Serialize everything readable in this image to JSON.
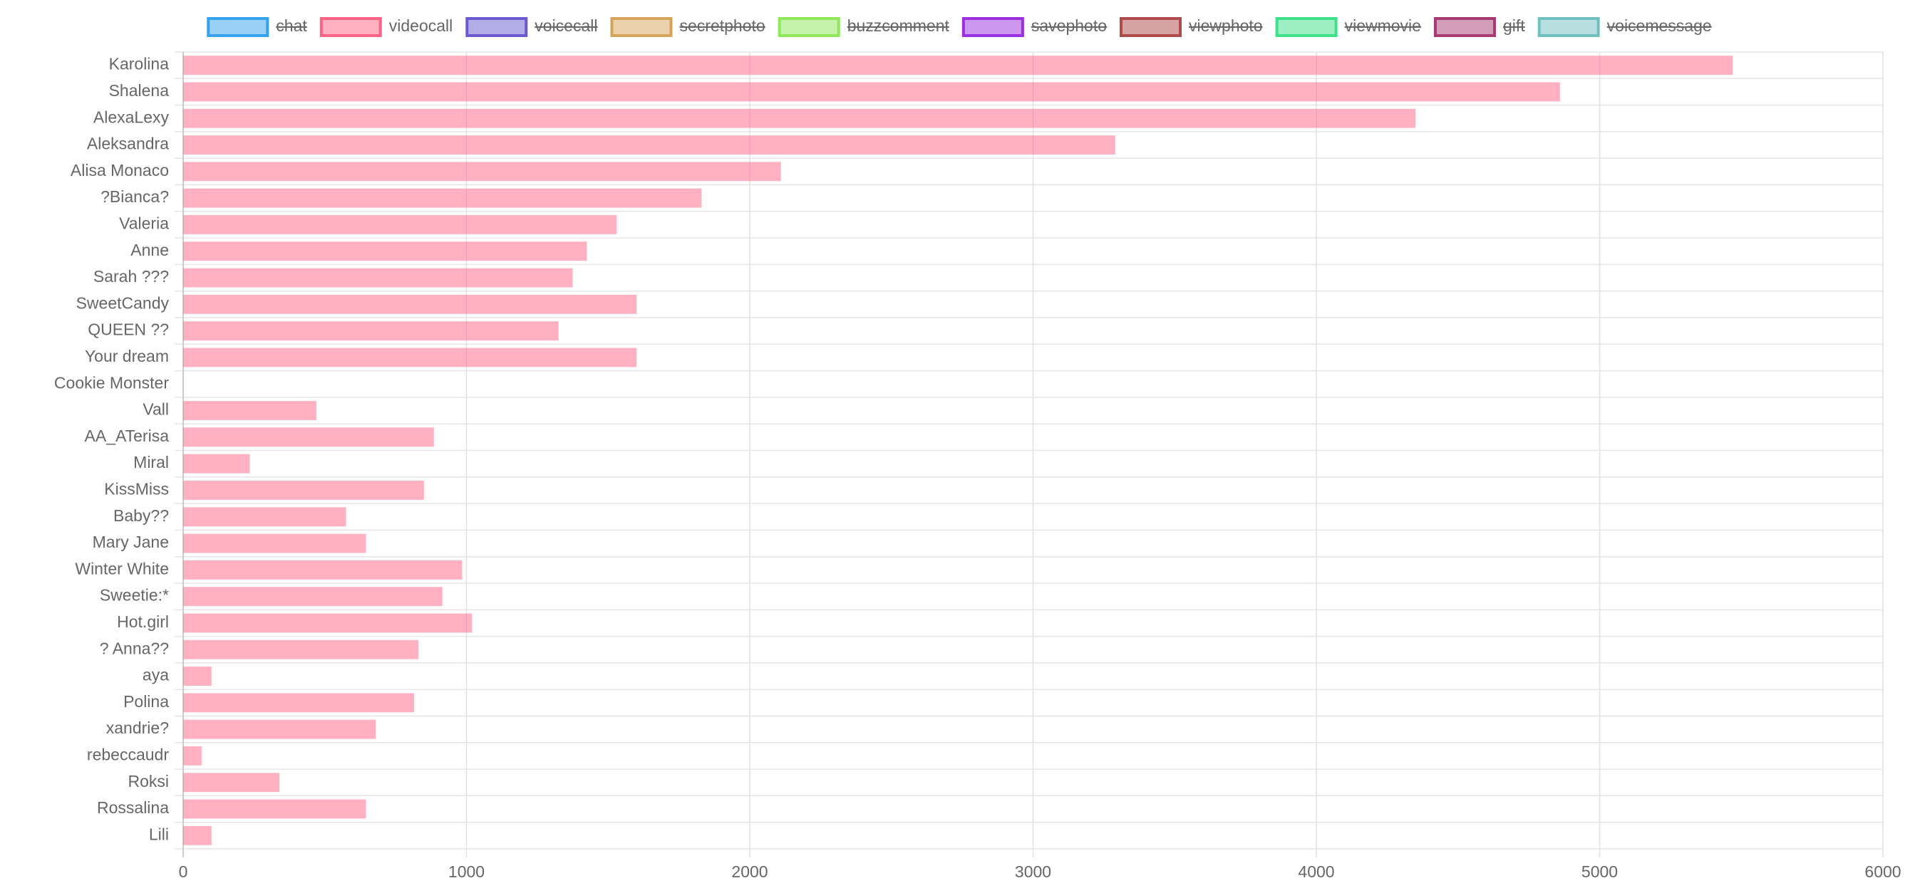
{
  "chart_data": {
    "type": "horizontal_bar",
    "categories": [
      "Karolina",
      "Shalena",
      "AlexaLexy",
      "Aleksandra",
      "Alisa Monaco",
      "?Bianca?",
      "Valeria",
      "Anne",
      "Sarah ???",
      "SweetCandy",
      "QUEEN ??",
      "Your dream",
      "Cookie Monster",
      "Vall",
      "AA_ATerisa",
      "Miral",
      "KissMiss",
      "Baby??",
      "Mary Jane",
      "Winter White",
      "Sweetie:*",
      "Hot.girl",
      "? Anna??",
      "aya",
      "Polina",
      "xandrie?",
      "rebeccaudr",
      "Roksi",
      "Rossalina",
      "Lili"
    ],
    "series": [
      {
        "name": "chat",
        "color": "#36a2eb",
        "hidden": true
      },
      {
        "name": "videocall",
        "color": "#ff6384",
        "hidden": false,
        "values": [
          5470,
          4860,
          4350,
          3290,
          2110,
          1830,
          1530,
          1425,
          1375,
          1600,
          1325,
          1600,
          0,
          470,
          885,
          235,
          850,
          575,
          645,
          985,
          915,
          1020,
          830,
          100,
          815,
          680,
          65,
          340,
          645,
          100
        ]
      },
      {
        "name": "voicecall",
        "color": "#6a5acd",
        "hidden": true
      },
      {
        "name": "secretphoto",
        "color": "#d4a55a",
        "hidden": true
      },
      {
        "name": "buzzcomment",
        "color": "#8ee85a",
        "hidden": true
      },
      {
        "name": "savephoto",
        "color": "#9b30e0",
        "hidden": true
      },
      {
        "name": "viewphoto",
        "color": "#b04a4a",
        "hidden": true
      },
      {
        "name": "viewmovie",
        "color": "#3ee08a",
        "hidden": true
      },
      {
        "name": "gift",
        "color": "#a83a72",
        "hidden": true
      },
      {
        "name": "voicemessage",
        "color": "#6fc0c0",
        "hidden": true
      }
    ],
    "xlim": [
      0,
      6000
    ],
    "xticks": [
      0,
      1000,
      2000,
      3000,
      4000,
      5000,
      6000
    ],
    "grid": true,
    "legend": "top"
  }
}
